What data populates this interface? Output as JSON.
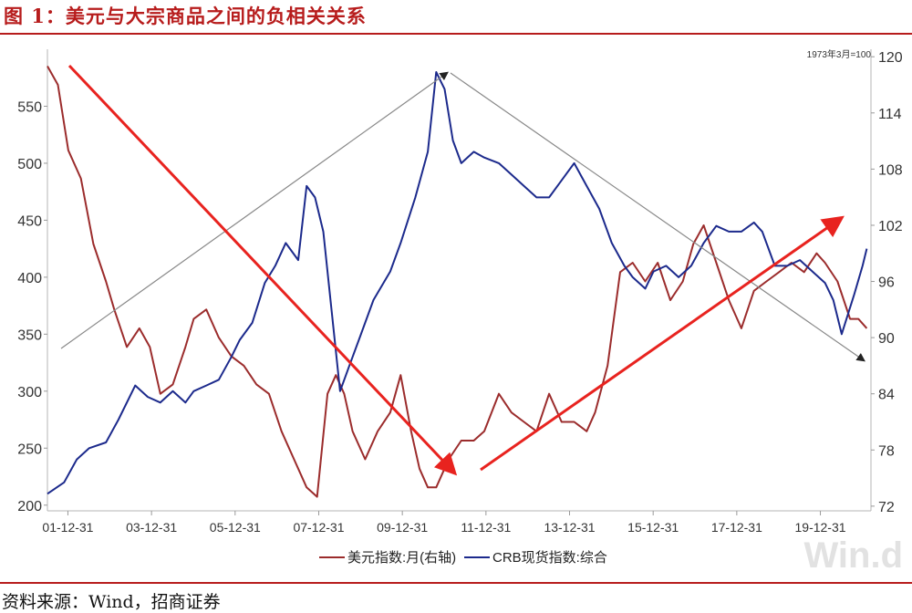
{
  "title": "图 1：美元与大宗商品之间的负相关关系",
  "source": "资料来源：Wind，招商证券",
  "chart_data": {
    "type": "line",
    "base_note": "1973年3月=100",
    "watermark": "Win.d",
    "x_ticks": [
      "01-12-31",
      "03-12-31",
      "05-12-31",
      "07-12-31",
      "09-12-31",
      "11-12-31",
      "13-12-31",
      "15-12-31",
      "17-12-31",
      "19-12-31"
    ],
    "x_range": [
      2001.5,
      2021.2
    ],
    "left_axis": {
      "ticks": [
        200,
        250,
        300,
        350,
        400,
        450,
        500,
        550
      ],
      "range": [
        195,
        600
      ]
    },
    "right_axis": {
      "ticks": [
        72,
        78,
        84,
        90,
        96,
        102,
        108,
        114,
        120
      ],
      "range": [
        71.5,
        120.8
      ]
    },
    "legend": [
      "美元指数:月(右轴)",
      "CRB现货指数:综合"
    ],
    "colors": {
      "usd": "#9b2c2c",
      "crb": "#1c2a8c",
      "trend_red": "#e8231f",
      "trend_gray": "#888888",
      "rule": "#b71c1c"
    },
    "series": [
      {
        "name": "美元指数:月(右轴)",
        "axis": "right",
        "x": [
          2001.5,
          2001.75,
          2002.0,
          2002.3,
          2002.6,
          2002.9,
          2003.1,
          2003.4,
          2003.7,
          2003.95,
          2004.2,
          2004.5,
          2004.8,
          2005.0,
          2005.3,
          2005.6,
          2005.9,
          2006.2,
          2006.5,
          2006.8,
          2007.1,
          2007.4,
          2007.7,
          2007.95,
          2008.2,
          2008.4,
          2008.6,
          2008.8,
          2009.1,
          2009.4,
          2009.7,
          2009.95,
          2010.2,
          2010.4,
          2010.6,
          2010.8,
          2011.1,
          2011.4,
          2011.7,
          2011.95,
          2012.3,
          2012.6,
          2012.9,
          2013.2,
          2013.5,
          2013.8,
          2014.1,
          2014.4,
          2014.6,
          2014.9,
          2015.2,
          2015.5,
          2015.8,
          2016.1,
          2016.4,
          2016.7,
          2016.95,
          2017.2,
          2017.5,
          2017.8,
          2018.1,
          2018.4,
          2018.7,
          2019.0,
          2019.3,
          2019.6,
          2019.9,
          2020.1,
          2020.4,
          2020.7,
          2020.9,
          2021.1
        ],
        "values": [
          119,
          117,
          110,
          107,
          100,
          96,
          93,
          89,
          91,
          89,
          84,
          85,
          89,
          92,
          93,
          90,
          88,
          87,
          85,
          84,
          80,
          77,
          74,
          73,
          84,
          86,
          84,
          80,
          77,
          80,
          82,
          86,
          80,
          76,
          74,
          74,
          77,
          79,
          79,
          80,
          84,
          82,
          81,
          80,
          84,
          81,
          81,
          80,
          82,
          87,
          97,
          98,
          96,
          98,
          94,
          96,
          100,
          102,
          98,
          94,
          91,
          95,
          96,
          97,
          98,
          97,
          99,
          98,
          96,
          92,
          92,
          91
        ]
      },
      {
        "name": "CRB现货指数:综合",
        "axis": "left",
        "x": [
          2001.5,
          2001.9,
          2002.2,
          2002.5,
          2002.9,
          2003.2,
          2003.6,
          2003.9,
          2004.2,
          2004.5,
          2004.8,
          2005.0,
          2005.3,
          2005.6,
          2005.9,
          2006.1,
          2006.4,
          2006.7,
          2006.95,
          2007.2,
          2007.5,
          2007.7,
          2007.9,
          2008.1,
          2008.3,
          2008.5,
          2008.7,
          2008.95,
          2009.3,
          2009.7,
          2009.95,
          2010.3,
          2010.6,
          2010.8,
          2011.0,
          2011.2,
          2011.4,
          2011.7,
          2011.95,
          2012.3,
          2012.6,
          2012.9,
          2013.2,
          2013.5,
          2013.8,
          2014.1,
          2014.4,
          2014.7,
          2015.0,
          2015.3,
          2015.5,
          2015.8,
          2016.0,
          2016.3,
          2016.6,
          2016.9,
          2017.2,
          2017.5,
          2017.8,
          2018.1,
          2018.4,
          2018.6,
          2018.9,
          2019.2,
          2019.5,
          2019.8,
          2020.1,
          2020.3,
          2020.5,
          2020.8,
          2021.0,
          2021.1
        ],
        "values": [
          210,
          220,
          240,
          250,
          255,
          275,
          305,
          295,
          290,
          300,
          290,
          300,
          305,
          310,
          330,
          345,
          360,
          395,
          410,
          430,
          415,
          480,
          470,
          440,
          370,
          300,
          320,
          345,
          380,
          405,
          430,
          470,
          510,
          580,
          565,
          520,
          500,
          510,
          505,
          500,
          490,
          480,
          470,
          470,
          485,
          500,
          480,
          460,
          430,
          410,
          400,
          390,
          405,
          410,
          400,
          410,
          430,
          445,
          440,
          440,
          448,
          440,
          410,
          410,
          415,
          405,
          395,
          380,
          350,
          385,
          410,
          425
        ]
      }
    ]
  }
}
